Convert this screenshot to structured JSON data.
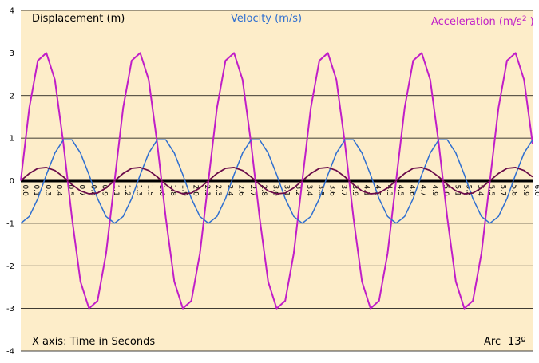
{
  "chart_data": {
    "type": "line",
    "ylim": [
      -4,
      4
    ],
    "yticks": [
      "4",
      "3",
      "2",
      "1",
      "0",
      "-1",
      "-2",
      "-3",
      "-4"
    ],
    "xlim": [
      0,
      6
    ],
    "xticks": [
      "0.0",
      "0.1",
      "0.3",
      "0.4",
      "0.5",
      "0.7",
      "0.8",
      "0.9",
      "1.1",
      "1.2",
      "1.3",
      "1.5",
      "1.6",
      "1.8",
      "1.9",
      "2.0",
      "2.1",
      "2.3",
      "2.4",
      "2.6",
      "2.7",
      "2.8",
      "3.0",
      "3.1",
      "3.2",
      "3.4",
      "3.5",
      "3.6",
      "3.7",
      "3.9",
      "4.1",
      "4.2",
      "4.3",
      "4.5",
      "4.6",
      "4.7",
      "4.9",
      "5.0",
      "5.1",
      "5.2",
      "5.4",
      "5.5",
      "5.7",
      "5.8",
      "5.9",
      "6.0"
    ],
    "grid": "horizontal",
    "background_color": "#fdedc9",
    "series": [
      {
        "name": "Displacement (m)",
        "color": "#6a0c4a",
        "x": [
          0,
          0.1,
          0.2,
          0.3,
          0.4,
          0.5,
          0.6,
          0.7,
          0.8,
          0.9,
          1.0,
          1.1,
          1.2,
          1.3,
          1.4,
          1.5,
          1.6,
          1.7,
          1.8,
          1.9,
          2.0,
          2.1,
          2.2,
          2.3,
          2.4,
          2.5,
          2.6,
          2.7,
          2.8,
          2.9,
          3.0,
          3.1,
          3.2,
          3.3,
          3.4,
          3.5,
          3.6,
          3.7,
          3.8,
          3.9,
          4.0,
          4.1,
          4.2,
          4.3,
          4.4,
          4.5,
          4.6,
          4.7,
          4.8,
          4.9,
          5.0,
          5.1,
          5.2,
          5.3,
          5.4,
          5.5,
          5.6,
          5.7,
          5.8,
          5.9,
          6.0
        ],
        "y": [
          0,
          0.17,
          0.29,
          0.31,
          0.24,
          0.09,
          -0.09,
          -0.24,
          -0.31,
          -0.29,
          -0.17,
          0,
          0.17,
          0.29,
          0.31,
          0.24,
          0.09,
          -0.09,
          -0.24,
          -0.31,
          -0.29,
          -0.17,
          0,
          0.17,
          0.29,
          0.31,
          0.24,
          0.09,
          -0.09,
          -0.24,
          -0.31,
          -0.29,
          -0.17,
          0,
          0.17,
          0.29,
          0.31,
          0.24,
          0.09,
          -0.09,
          -0.24,
          -0.31,
          -0.29,
          -0.17,
          0,
          0.17,
          0.29,
          0.31,
          0.24,
          0.09,
          -0.09,
          -0.24,
          -0.31,
          -0.29,
          -0.17,
          0,
          0.17,
          0.29,
          0.31,
          0.24,
          0.09
        ]
      },
      {
        "name": "Velocity (m/s)",
        "color": "#2f6fd0",
        "x": [
          0,
          0.1,
          0.2,
          0.3,
          0.4,
          0.5,
          0.6,
          0.7,
          0.8,
          0.9,
          1.0,
          1.1,
          1.2,
          1.3,
          1.4,
          1.5,
          1.6,
          1.7,
          1.8,
          1.9,
          2.0,
          2.1,
          2.2,
          2.3,
          2.4,
          2.5,
          2.6,
          2.7,
          2.8,
          2.9,
          3.0,
          3.1,
          3.2,
          3.3,
          3.4,
          3.5,
          3.6,
          3.7,
          3.8,
          3.9,
          4.0,
          4.1,
          4.2,
          4.3,
          4.4,
          4.5,
          4.6,
          4.7,
          4.8,
          4.9,
          5.0,
          5.1,
          5.2,
          5.3,
          5.4,
          5.5,
          5.6,
          5.7,
          5.8,
          5.9,
          6.0
        ],
        "y": [
          -1.0,
          -0.84,
          -0.42,
          0.14,
          0.65,
          0.96,
          0.96,
          0.65,
          0.14,
          -0.42,
          -0.84,
          -1.0,
          -0.84,
          -0.42,
          0.14,
          0.65,
          0.96,
          0.96,
          0.65,
          0.14,
          -0.42,
          -0.84,
          -1.0,
          -0.84,
          -0.42,
          0.14,
          0.65,
          0.96,
          0.96,
          0.65,
          0.14,
          -0.42,
          -0.84,
          -1.0,
          -0.84,
          -0.42,
          0.14,
          0.65,
          0.96,
          0.96,
          0.65,
          0.14,
          -0.42,
          -0.84,
          -1.0,
          -0.84,
          -0.42,
          0.14,
          0.65,
          0.96,
          0.96,
          0.65,
          0.14,
          -0.42,
          -0.84,
          -1.0,
          -0.84,
          -0.42,
          0.14,
          0.65,
          0.96
        ]
      },
      {
        "name": "Acceleration (m/s²)",
        "color": "#c01ec8",
        "x": [
          0,
          0.1,
          0.2,
          0.3,
          0.4,
          0.5,
          0.6,
          0.7,
          0.8,
          0.9,
          1.0,
          1.1,
          1.2,
          1.3,
          1.4,
          1.5,
          1.6,
          1.7,
          1.8,
          1.9,
          2.0,
          2.1,
          2.2,
          2.3,
          2.4,
          2.5,
          2.6,
          2.7,
          2.8,
          2.9,
          3.0,
          3.1,
          3.2,
          3.3,
          3.4,
          3.5,
          3.6,
          3.7,
          3.8,
          3.9,
          4.0,
          4.1,
          4.2,
          4.3,
          4.4,
          4.5,
          4.6,
          4.7,
          4.8,
          4.9,
          5.0,
          5.1,
          5.2,
          5.3,
          5.4,
          5.5,
          5.6,
          5.7,
          5.8,
          5.9,
          6.0
        ],
        "y": [
          0,
          1.71,
          2.82,
          3.0,
          2.37,
          0.87,
          -0.87,
          -2.37,
          -3.0,
          -2.82,
          -1.71,
          0,
          1.71,
          2.82,
          3.0,
          2.37,
          0.87,
          -0.87,
          -2.37,
          -3.0,
          -2.82,
          -1.71,
          0,
          1.71,
          2.82,
          3.0,
          2.37,
          0.87,
          -0.87,
          -2.37,
          -3.0,
          -2.82,
          -1.71,
          0,
          1.71,
          2.82,
          3.0,
          2.37,
          0.87,
          -0.87,
          -2.37,
          -3.0,
          -2.82,
          -1.71,
          0,
          1.71,
          2.82,
          3.0,
          2.37,
          0.87,
          -0.87,
          -2.37,
          -3.0,
          -2.82,
          -1.71,
          0,
          1.71,
          2.82,
          3.0,
          2.37,
          0.87
        ]
      }
    ],
    "labels": {
      "displacement": "Displacement (m)",
      "velocity": "Velocity (m/s)",
      "acceleration_prefix": "Acceleration (m/s",
      "acceleration_sup": "2",
      "acceleration_suffix": " )",
      "xaxis_note": "X axis: Time in Seconds",
      "arc_label": "Arc",
      "arc_value": "13º"
    }
  }
}
